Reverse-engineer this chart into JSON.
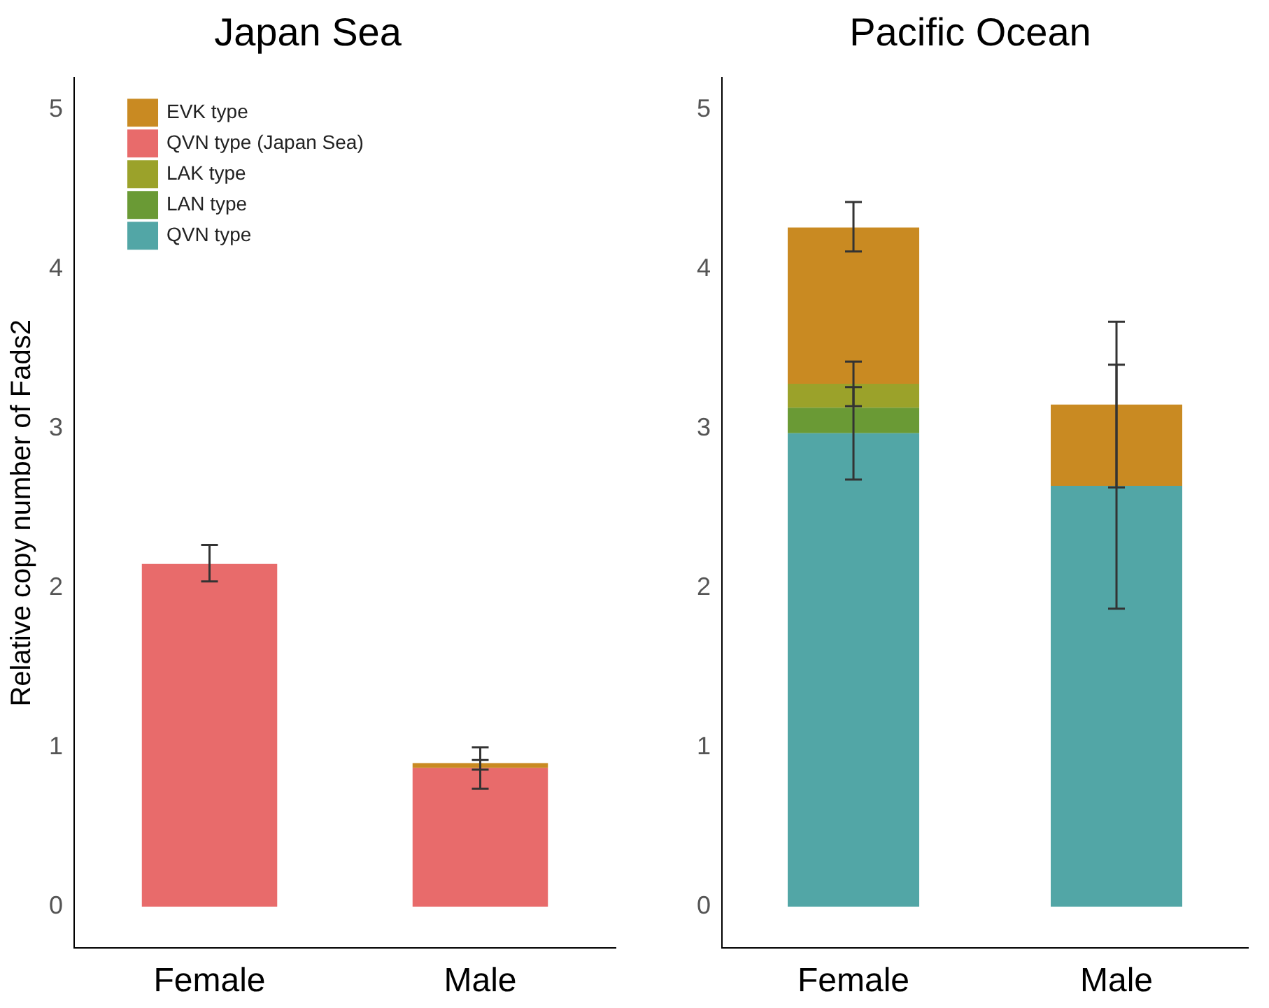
{
  "chart_data": [
    {
      "type": "bar",
      "title": "Japan Sea",
      "ylabel": "Relative copy number of Fads2",
      "categories": [
        "Female",
        "Male"
      ],
      "stacked": true,
      "legend": "top left",
      "ylim": [
        -0.26,
        5.2
      ],
      "yticks": [
        0,
        1,
        2,
        3,
        4,
        5
      ],
      "series": [
        {
          "name": "QVN type",
          "color": "#52a6a6",
          "values": [
            0,
            0
          ]
        },
        {
          "name": "LAN type",
          "color": "#6a9a35",
          "values": [
            0,
            0
          ]
        },
        {
          "name": "LAK type",
          "color": "#9ba22a",
          "values": [
            0,
            0
          ]
        },
        {
          "name": "QVN type (Japan Sea)",
          "color": "#e86b6b",
          "values": [
            2.15,
            0.87
          ],
          "errors": [
            [
              2.04,
              2.27
            ],
            [
              0.74,
              1.0
            ]
          ]
        },
        {
          "name": "EVK type",
          "color": "#c98a22",
          "values": [
            0,
            0.03
          ],
          "errors": [
            null,
            [
              0.86,
              0.92
            ]
          ]
        }
      ]
    },
    {
      "type": "bar",
      "title": "Pacific Ocean",
      "categories": [
        "Female",
        "Male"
      ],
      "stacked": true,
      "ylim": [
        -0.26,
        5.2
      ],
      "yticks": [
        0,
        1,
        2,
        3,
        4,
        5
      ],
      "series": [
        {
          "color": "#52a6a6",
          "values": [
            2.97,
            2.64
          ],
          "errors": [
            [
              2.68,
              3.26
            ],
            [
              1.87,
              3.4
            ]
          ]
        },
        {
          "color": "#6a9a35",
          "values": [
            0.16,
            0
          ]
        },
        {
          "color": "#9ba22a",
          "values": [
            0.15,
            0
          ],
          "errors": [
            [
              3.14,
              3.42
            ],
            null
          ]
        },
        {
          "color": "#e86b6b",
          "values": [
            0,
            0
          ]
        },
        {
          "color": "#c98a22",
          "values": [
            0.98,
            0.51
          ],
          "errors": [
            [
              4.11,
              4.42
            ],
            [
              2.63,
              3.67
            ]
          ]
        }
      ]
    }
  ]
}
